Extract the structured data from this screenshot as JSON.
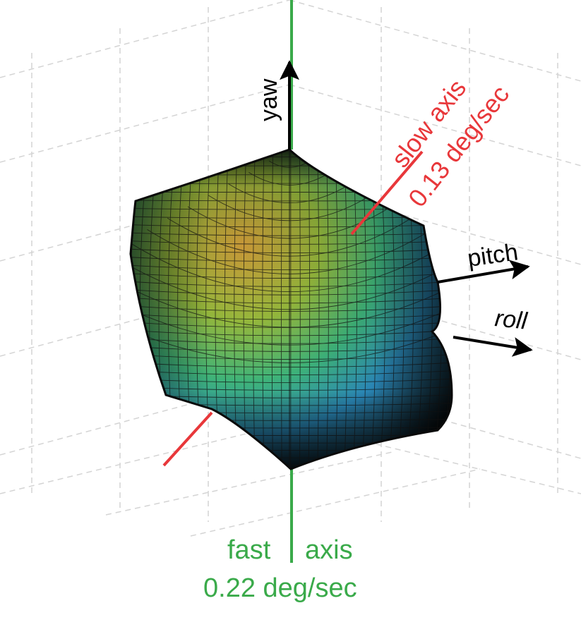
{
  "labels": {
    "yaw": "yaw",
    "pitch": "pitch",
    "roll": "roll",
    "slow_axis_name": "slow axis",
    "slow_axis_rate": "0.13 deg/sec",
    "fast_axis_word1": "fast",
    "fast_axis_word2": "axis",
    "fast_axis_rate": "0.22 deg/sec"
  },
  "colors": {
    "slow_axis": "#e8373a",
    "fast_axis": "#3aaa4a",
    "axis_arrow": "#000000",
    "grid": "#d4d4d4",
    "surface_top": "#e8b040",
    "surface_mid": "#3fb57a",
    "surface_low": "#2a86b5",
    "surface_dark": "#0a0a0a"
  },
  "values": {
    "slow_axis_deg_per_sec": 0.13,
    "fast_axis_deg_per_sec": 0.22
  }
}
